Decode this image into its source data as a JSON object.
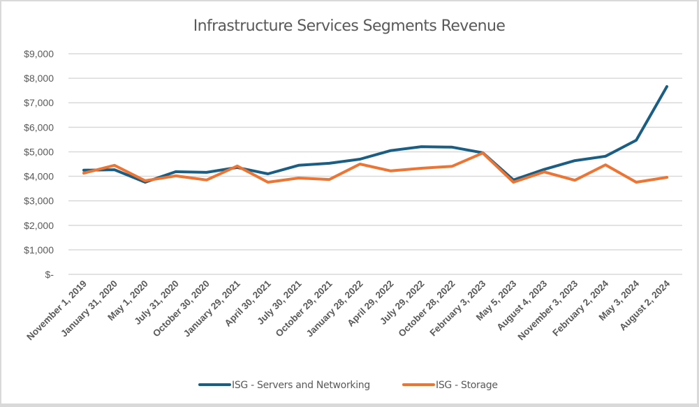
{
  "chart_data": {
    "type": "line",
    "title": "Infrastructure Services Segments Revenue",
    "xlabel": "",
    "ylabel": "",
    "ylim": [
      0,
      9000
    ],
    "yticks": [
      0,
      1000,
      2000,
      3000,
      4000,
      5000,
      6000,
      7000,
      8000,
      9000
    ],
    "ytick_labels": [
      "$-",
      "$1,000",
      "$2,000",
      "$3,000",
      "$4,000",
      "$5,000",
      "$6,000",
      "$7,000",
      "$8,000",
      "$9,000"
    ],
    "grid": true,
    "legend_position": "bottom",
    "categories": [
      "November 1, 2019",
      "January 31, 2020",
      "May 1, 2020",
      "July 31, 2020",
      "October 30, 2020",
      "January 29, 2021",
      "April 30, 2021",
      "July 30, 2021",
      "October 29, 2021",
      "January 28, 2022",
      "April 29, 2022",
      "July 29, 2022",
      "October 28, 2022",
      "February 3, 2023",
      "May 5, 2023",
      "August 4, 2023",
      "November 3, 2023",
      "February 2, 2024",
      "May 3, 2024",
      "August 2, 2024"
    ],
    "series": [
      {
        "name": "ISG - Servers and Networking",
        "color": "#1b5e83",
        "values": [
          4250,
          4270,
          3760,
          4190,
          4160,
          4360,
          4100,
          4450,
          4530,
          4700,
          5050,
          5210,
          5190,
          4960,
          3850,
          4280,
          4640,
          4820,
          5470,
          7660
        ]
      },
      {
        "name": "ISG - Storage",
        "color": "#ed7433",
        "values": [
          4130,
          4450,
          3820,
          4020,
          3850,
          4420,
          3760,
          3930,
          3870,
          4500,
          4220,
          4330,
          4410,
          4950,
          3760,
          4180,
          3840,
          4470,
          3760,
          3960
        ]
      }
    ]
  }
}
